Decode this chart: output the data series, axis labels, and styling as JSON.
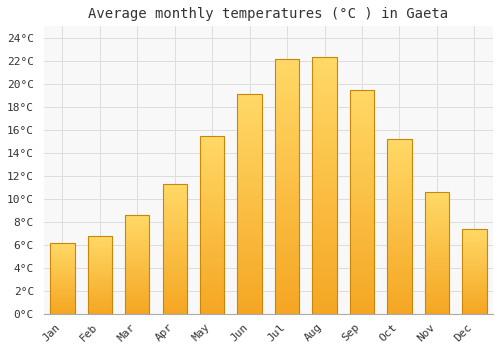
{
  "title": "Average monthly temperatures (°C ) in Gaeta",
  "months": [
    "Jan",
    "Feb",
    "Mar",
    "Apr",
    "May",
    "Jun",
    "Jul",
    "Aug",
    "Sep",
    "Oct",
    "Nov",
    "Dec"
  ],
  "values": [
    6.2,
    6.8,
    8.6,
    11.3,
    15.5,
    19.1,
    22.2,
    22.3,
    19.5,
    15.2,
    10.6,
    7.4
  ],
  "bar_color_bottom": "#F5A623",
  "bar_color_top": "#FFD966",
  "bar_edge_color": "#C8860A",
  "background_color": "#FFFFFF",
  "plot_bg_color": "#F8F8F8",
  "grid_color": "#DDDDDD",
  "text_color": "#333333",
  "ylim": [
    0,
    25
  ],
  "yticks": [
    0,
    2,
    4,
    6,
    8,
    10,
    12,
    14,
    16,
    18,
    20,
    22,
    24
  ],
  "title_fontsize": 10,
  "tick_fontsize": 8,
  "font_family": "monospace",
  "bar_width": 0.65
}
